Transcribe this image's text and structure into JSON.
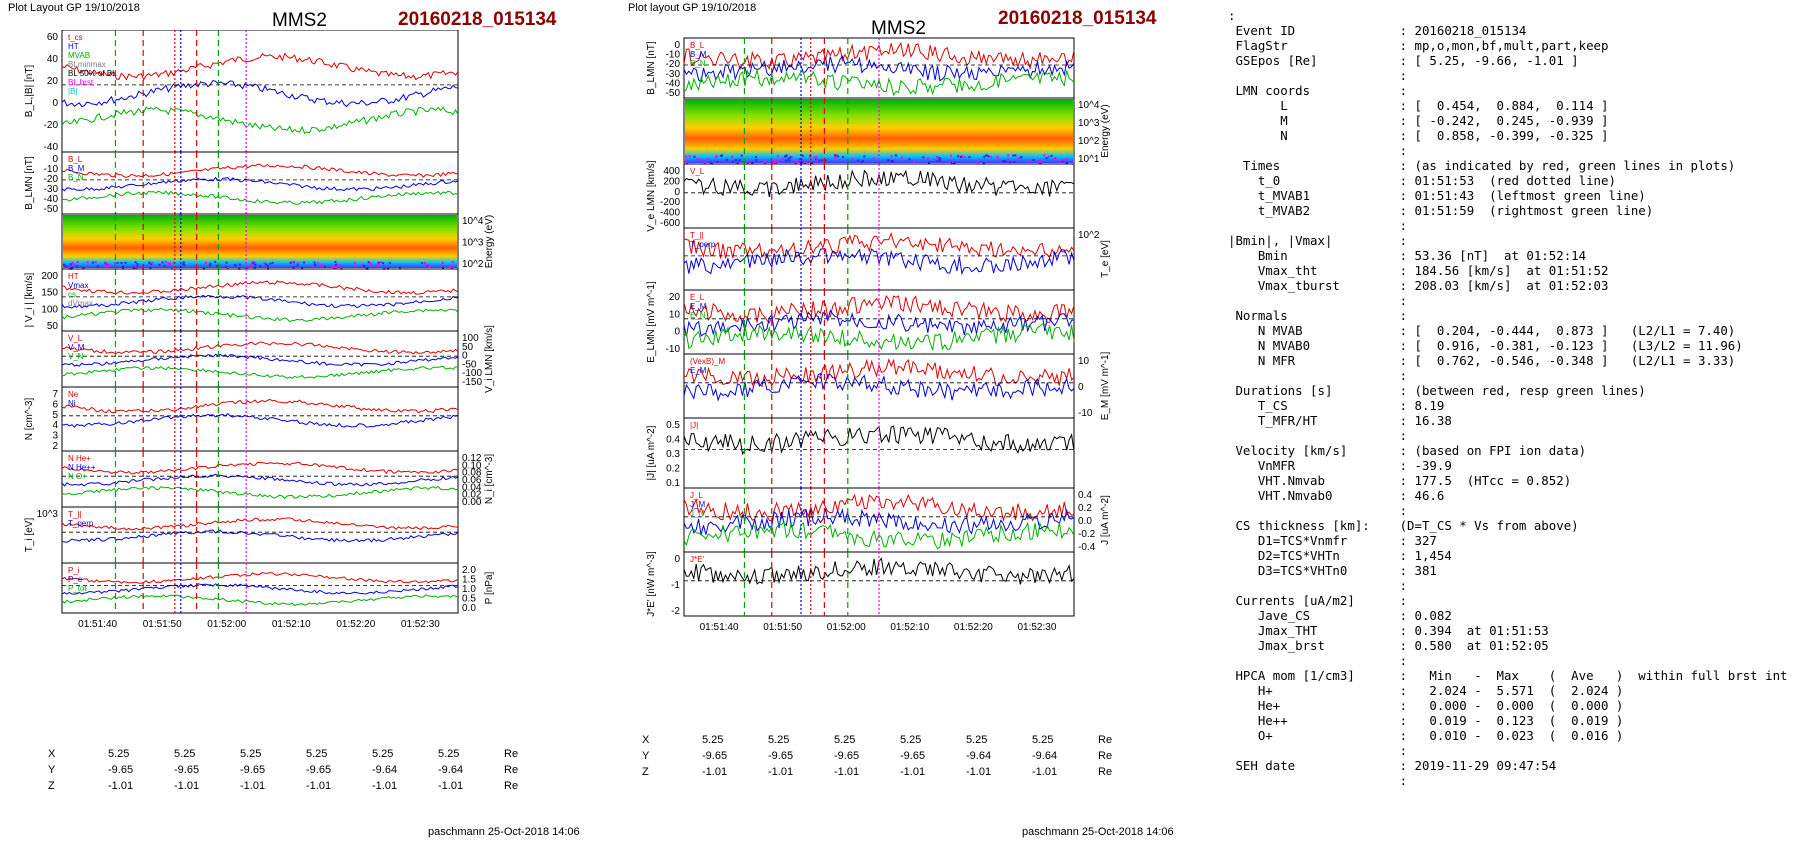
{
  "left": {
    "layout_label": "Plot Layout GP 19/10/2018",
    "spacecraft": "MMS2",
    "event": "20160218_015134",
    "footer": "paschmann 25-Oct-2018 14:06",
    "time_ticks": [
      "01:51:40",
      "01:51:50",
      "01:52:00",
      "01:52:10",
      "01:52:20",
      "01:52:30"
    ],
    "pos_rows": [
      {
        "label": "X",
        "values": [
          "5.25",
          "5.25",
          "5.25",
          "5.25",
          "5.25",
          "5.25"
        ],
        "unit": "Re"
      },
      {
        "label": "Y",
        "values": [
          "-9.65",
          "-9.65",
          "-9.65",
          "-9.65",
          "-9.64",
          "-9.64"
        ],
        "unit": "Re"
      },
      {
        "label": "Z",
        "values": [
          "-1.01",
          "-1.01",
          "-1.01",
          "-1.01",
          "-1.01",
          "-1.01"
        ],
        "unit": "Re"
      }
    ],
    "panels": [
      {
        "ylabel": "B_L,|B| [nT]",
        "side": "left",
        "ticks": [
          "60",
          "40",
          "20",
          "0",
          "-20",
          "-40"
        ],
        "legend": [
          "t_cs",
          "HT",
          "MVAB",
          "BLminmax",
          "BL 50% of BL",
          "BL brst",
          "|B|"
        ]
      },
      {
        "ylabel": "B_LMN [nT]",
        "side": "left",
        "ticks": [
          "0",
          "-10",
          "-20",
          "-30",
          "-40",
          "-50"
        ],
        "legend": [
          "B_L",
          "B_M",
          "B_N"
        ]
      },
      {
        "ylabel": "Energy (eV)",
        "side": "right",
        "ticks": [
          "10^4",
          "10^3",
          "10^2"
        ],
        "legend": []
      },
      {
        "ylabel": "| V_i | [km/s]",
        "side": "left",
        "ticks": [
          "200",
          "150",
          "100",
          "50"
        ],
        "legend": [
          "HT",
          "Vmax",
          "cs",
          "dVmax"
        ]
      },
      {
        "ylabel": "V_i LMN [km/s]",
        "side": "right",
        "ticks": [
          "100",
          "50",
          "0",
          "-50",
          "-100",
          "-150"
        ],
        "legend": [
          "V_L",
          "V_M",
          "V_N"
        ]
      },
      {
        "ylabel": "N [cm^-3]",
        "side": "left",
        "ticks": [
          "7",
          "6",
          "5",
          "4",
          "3",
          "2"
        ],
        "legend": [
          "Ne",
          "Ni"
        ]
      },
      {
        "ylabel": "N_i [cm^-3]",
        "side": "right",
        "ticks": [
          "0.12",
          "0.10",
          "0.08",
          "0.06",
          "0.04",
          "0.02",
          "0.00"
        ],
        "legend": [
          "N He+",
          "N He++",
          "N O+"
        ]
      },
      {
        "ylabel": "T_i [eV]",
        "side": "left",
        "ticks": [
          "10^3"
        ],
        "legend": [
          "T_||",
          "T_perp"
        ]
      },
      {
        "ylabel": "P [nPa]",
        "side": "right",
        "ticks": [
          "2.0",
          "1.5",
          "1.0",
          "0.5",
          "0.0"
        ],
        "legend": [
          "P_i",
          "P_e",
          "P_tot"
        ]
      }
    ]
  },
  "right": {
    "layout_label": "Plot layout GP 19/10/2018",
    "spacecraft": "MMS2",
    "event": "20160218_015134",
    "footer": "paschmann 25-Oct-2018 14:06",
    "time_ticks": [
      "01:51:40",
      "01:51:50",
      "01:52:00",
      "01:52:10",
      "01:52:20",
      "01:52:30"
    ],
    "pos_rows": [
      {
        "label": "X",
        "values": [
          "5.25",
          "5.25",
          "5.25",
          "5.25",
          "5.25",
          "5.25"
        ],
        "unit": "Re"
      },
      {
        "label": "Y",
        "values": [
          "-9.65",
          "-9.65",
          "-9.65",
          "-9.65",
          "-9.64",
          "-9.64"
        ],
        "unit": "Re"
      },
      {
        "label": "Z",
        "values": [
          "-1.01",
          "-1.01",
          "-1.01",
          "-1.01",
          "-1.01",
          "-1.01"
        ],
        "unit": "Re"
      }
    ],
    "panels": [
      {
        "ylabel": "B_LMN [nT]",
        "side": "left",
        "ticks": [
          "0",
          "-10",
          "-20",
          "-30",
          "-40",
          "-50"
        ],
        "legend": [
          "B_L",
          "B_M",
          "B_N"
        ]
      },
      {
        "ylabel": "Energy (eV)",
        "side": "right",
        "ticks": [
          "10^4",
          "10^3",
          "10^2",
          "10^1"
        ],
        "legend": []
      },
      {
        "ylabel": "V_e LMN [km/s]",
        "side": "left",
        "ticks": [
          "400",
          "200",
          "0",
          "-200",
          "-400",
          "-600"
        ],
        "legend": [
          "V_L"
        ]
      },
      {
        "ylabel": "T_e [eV]",
        "side": "right",
        "ticks": [
          "10^2"
        ],
        "legend": [
          "T_||",
          "T_perp"
        ]
      },
      {
        "ylabel": "E_LMN [mV m^-1]",
        "side": "left",
        "ticks": [
          "20",
          "10",
          "0",
          "-10"
        ],
        "legend": [
          "E_L",
          "E_M",
          "E_N"
        ]
      },
      {
        "ylabel": "E_M [mV m^-1]",
        "side": "right",
        "ticks": [
          "10",
          "0",
          "-10"
        ],
        "legend": [
          "(VexB)_M",
          "E_M"
        ]
      },
      {
        "ylabel": "|J| [uA m^-2]",
        "side": "left",
        "ticks": [
          "0.5",
          "0.4",
          "0.3",
          "0.2",
          "0.1"
        ],
        "legend": [
          "|J|"
        ]
      },
      {
        "ylabel": "J [uA m^-2]",
        "side": "right",
        "ticks": [
          "0.4",
          "0.2",
          "0.0",
          "-0.2",
          "-0.4"
        ],
        "legend": [
          "J_L",
          "J_M",
          "J_N"
        ]
      },
      {
        "ylabel": "J*E' [nW m^-3]",
        "side": "left",
        "ticks": [
          "0",
          "-1",
          "-2"
        ],
        "legend": [
          "J*E'"
        ]
      }
    ]
  },
  "info_lines": [
    ":",
    " Event ID              : 20160218_015134",
    " FlagStr               : mp,o,mon,bf,mult,part,keep",
    " GSEpos [Re]           : [ 5.25, -9.66, -1.01 ]",
    "                       :",
    " LMN coords            :",
    "       L               : [  0.454,  0.884,  0.114 ]",
    "       M               : [ -0.242,  0.245, -0.939 ]",
    "       N               : [  0.858, -0.399, -0.325 ]",
    "                       :",
    "  Times                : (as indicated by red, green lines in plots)",
    "    t_0                : 01:51:53  (red dotted line)",
    "    t_MVAB1            : 01:51:43  (leftmost green line)",
    "    t_MVAB2            : 01:51:59  (rightmost green line)",
    "                       :",
    "|Bmin|, |Vmax|         :",
    "    Bmin               : 53.36 [nT]  at 01:52:14",
    "    Vmax_tht           : 184.56 [km/s]  at 01:51:52",
    "    Vmax_tburst        : 208.03 [km/s]  at 01:52:03",
    "                       :",
    " Normals               :",
    "    N MVAB             : [  0.204, -0.444,  0.873 ]   (L2/L1 = 7.40)",
    "    N MVAB0            : [  0.916, -0.381, -0.123 ]   (L3/L2 = 11.96)",
    "    N MFR              : [  0.762, -0.546, -0.348 ]   (L2/L1 = 3.33)",
    "                       :",
    " Durations [s]         : (between red, resp green lines)",
    "    T_CS               : 8.19",
    "    T_MFR/HT           : 16.38",
    "                       :",
    " Velocity [km/s]       : (based on FPI ion data)",
    "    VnMFR              : -39.9",
    "    VHT.Nmvab          : 177.5  (HTcc = 0.852)",
    "    VHT.Nmvab0         : 46.6",
    "                       :",
    " CS thickness [km]:    (D=T_CS * Vs from above)",
    "    D1=TCS*Vnmfr       : 327",
    "    D2=TCS*VHTn        : 1,454",
    "    D3=TCS*VHTn0       : 381",
    "                       :",
    " Currents [uA/m2]      :",
    "    Jave_CS            : 0.082",
    "    Jmax_THT           : 0.394  at 01:51:53",
    "    Jmax_brst          : 0.580  at 01:52:05",
    "                       :",
    " HPCA mom [1/cm3]      :   Min   -  Max    (  Ave   )  within full brst int",
    "    H+                 :   2.024 -  5.571  (  2.024 )",
    "    He+                :   0.000 -  0.000  (  0.000 )",
    "    He++               :   0.019 -  0.123  (  0.019 )",
    "    O+                 :   0.010 -  0.023  (  0.016 )",
    "                       :",
    " SEH date              : 2019-11-29 09:47:54",
    "                       :"
  ],
  "chart_data": [
    {
      "type": "line",
      "title": "MMS2 20160218_015134",
      "ylabel": "B_L,|B| [nT]",
      "ylim": [
        -50,
        70
      ],
      "x": [
        "01:51:40",
        "01:51:50",
        "01:51:55",
        "01:52:00",
        "01:52:10",
        "01:52:20",
        "01:52:30"
      ],
      "series": [
        {
          "name": "|B|",
          "values": [
            60,
            58,
            55,
            54,
            55,
            60,
            60
          ]
        },
        {
          "name": "BL brst",
          "values": [
            -43,
            -45,
            -35,
            -30,
            -32,
            -35,
            -40
          ]
        }
      ]
    },
    {
      "type": "line",
      "title": "",
      "ylabel": "N [cm^-3]",
      "ylim": [
        2,
        7
      ],
      "x": [
        "01:51:40",
        "01:51:50",
        "01:51:55",
        "01:52:00",
        "01:52:10",
        "01:52:20",
        "01:52:30"
      ],
      "series": [
        {
          "name": "Ne",
          "values": [
            2.7,
            3.2,
            6.0,
            6.8,
            6.0,
            3.0,
            2.5
          ]
        },
        {
          "name": "Ni",
          "values": [
            2.7,
            3.1,
            5.8,
            6.5,
            5.8,
            2.9,
            2.4
          ]
        }
      ]
    },
    {
      "type": "line",
      "title": "",
      "ylabel": "N_i [cm^-3]",
      "ylim": [
        0,
        0.12
      ],
      "x": [
        "01:51:30",
        "01:51:40",
        "01:51:50",
        "01:52:00",
        "01:52:10",
        "01:52:20"
      ],
      "series": [
        {
          "name": "N He++",
          "values": [
            0.019,
            0.04,
            0.09,
            0.108,
            0.123,
            0.048
          ]
        },
        {
          "name": "N O+",
          "values": [
            0.01,
            0.023,
            0.014,
            0.013,
            0.013,
            0.016
          ]
        }
      ]
    },
    {
      "type": "line",
      "title": "MMS2 20160218_015134",
      "ylabel": "|J| [uA m^-2]",
      "ylim": [
        0,
        0.5
      ],
      "x": [
        "01:51:40",
        "01:51:50",
        "01:52:00",
        "01:52:05",
        "01:52:10",
        "01:52:20",
        "01:52:30"
      ],
      "series": [
        {
          "name": "|J|",
          "values": [
            0.1,
            0.3,
            0.35,
            0.58,
            0.3,
            0.2,
            0.1
          ]
        }
      ]
    }
  ]
}
